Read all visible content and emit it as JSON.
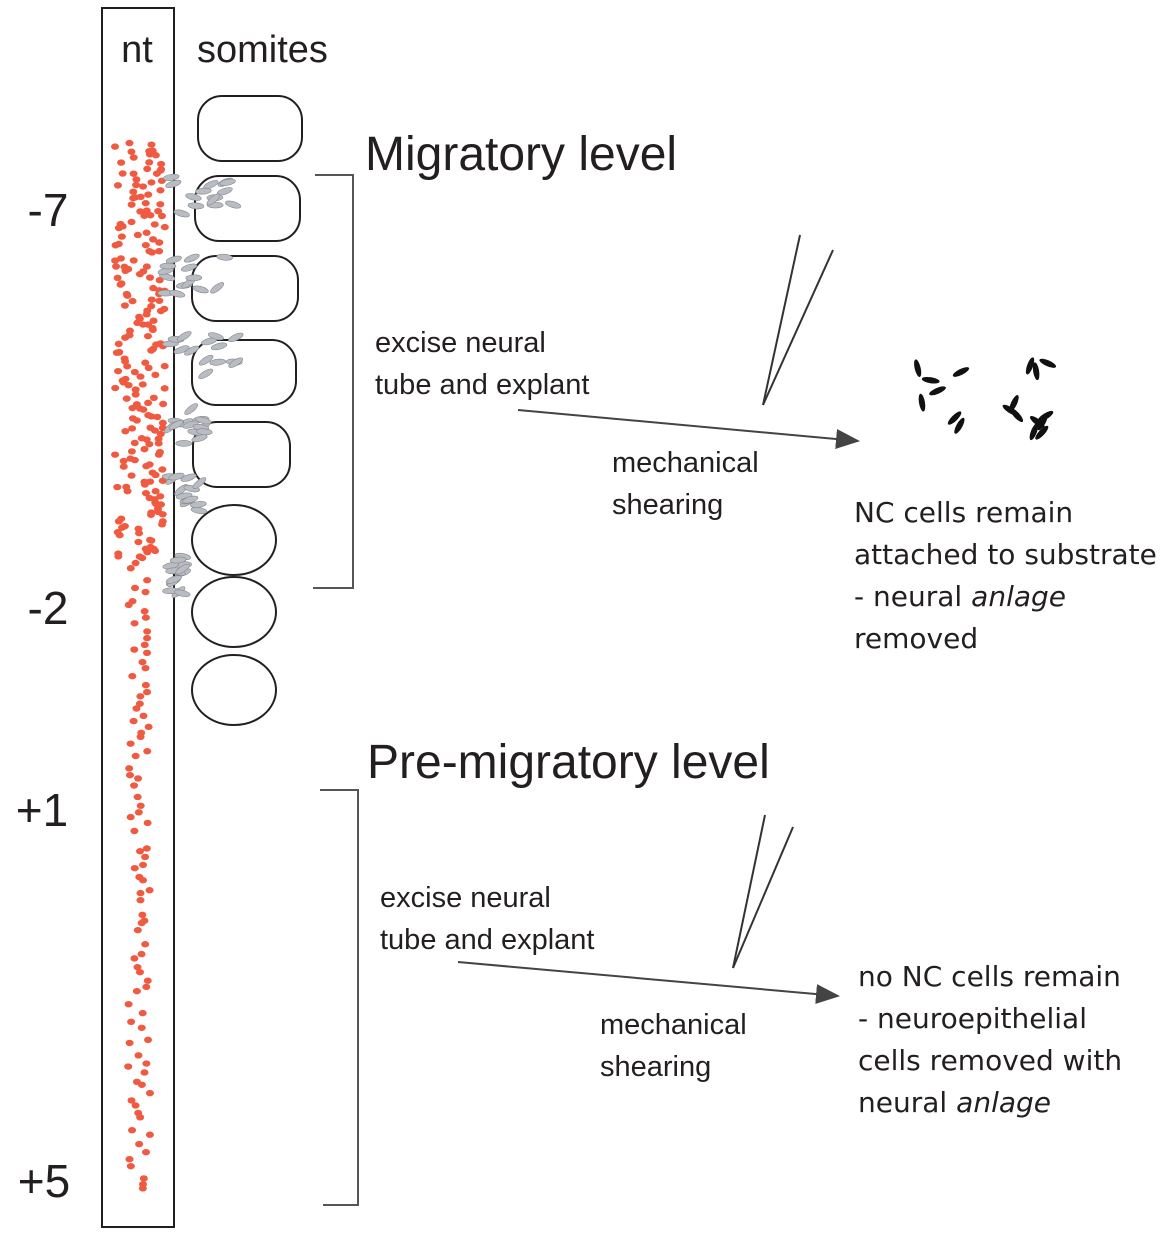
{
  "labels": {
    "nt": "nt",
    "somites": "somites"
  },
  "levels": [
    "-7",
    "-2",
    "+1",
    "+5"
  ],
  "panels": [
    {
      "title": "Migratory level",
      "step": [
        "excise neural",
        "tube and explant"
      ],
      "action": [
        "mechanical",
        "shearing"
      ],
      "result": [
        [
          "NC cells remain"
        ],
        [
          "attached to substrate"
        ],
        [
          "- neural",
          "anlage"
        ],
        [
          "removed"
        ]
      ]
    },
    {
      "title": "Pre-migratory level",
      "step": [
        "excise neural",
        "tube and explant"
      ],
      "action": [
        "mechanical",
        "shearing"
      ],
      "result": [
        [
          "no NC cells remain"
        ],
        [
          "- neuroepithelial"
        ],
        [
          "cells removed with"
        ],
        [
          "neural",
          "anlage"
        ]
      ]
    }
  ]
}
